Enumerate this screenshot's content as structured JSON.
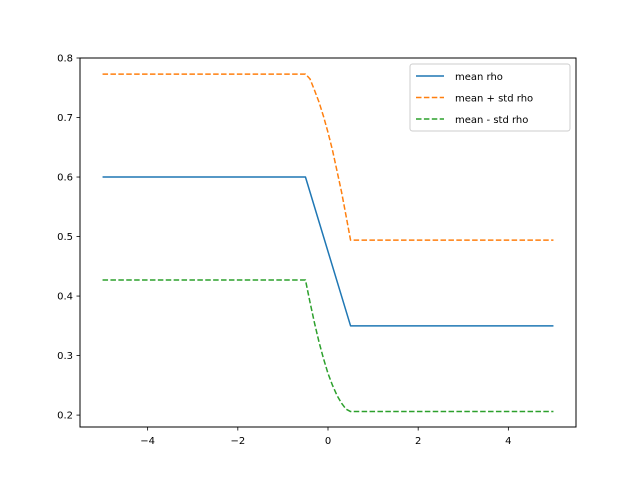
{
  "chart_data": {
    "type": "line",
    "title": "",
    "xlabel": "",
    "ylabel": "",
    "xlim": [
      -5.5,
      5.5
    ],
    "ylim": [
      0.18,
      0.8
    ],
    "xticks": [
      -4,
      -2,
      0,
      2,
      4
    ],
    "xtick_labels": [
      "−4",
      "−2",
      "0",
      "2",
      "4"
    ],
    "yticks": [
      0.2,
      0.3,
      0.4,
      0.5,
      0.6,
      0.7,
      0.8
    ],
    "ytick_labels": [
      "0.2",
      "0.3",
      "0.4",
      "0.5",
      "0.6",
      "0.7",
      "0.8"
    ],
    "grid": false,
    "legend_position": "top-right",
    "series": [
      {
        "name": "mean rho",
        "color": "#1f77b4",
        "style": "solid",
        "x": [
          -5,
          -0.5,
          0.5,
          5
        ],
        "y": [
          0.6,
          0.6,
          0.35,
          0.35
        ]
      },
      {
        "name": "mean + std rho",
        "color": "#ff7f0e",
        "style": "dashed",
        "x": [
          -5,
          -0.5,
          -0.4,
          -0.3,
          -0.2,
          -0.1,
          0,
          0.1,
          0.2,
          0.3,
          0.4,
          0.5,
          5
        ],
        "y": [
          0.773,
          0.773,
          0.765,
          0.746,
          0.726,
          0.702,
          0.675,
          0.645,
          0.61,
          0.575,
          0.535,
          0.494,
          0.494
        ]
      },
      {
        "name": "mean - std rho",
        "color": "#2ca02c",
        "style": "dashed",
        "x": [
          -5,
          -0.5,
          -0.4,
          -0.3,
          -0.2,
          -0.1,
          0,
          0.1,
          0.2,
          0.3,
          0.4,
          0.5,
          5
        ],
        "y": [
          0.427,
          0.427,
          0.39,
          0.355,
          0.323,
          0.295,
          0.27,
          0.25,
          0.233,
          0.22,
          0.21,
          0.206,
          0.206
        ]
      }
    ]
  }
}
